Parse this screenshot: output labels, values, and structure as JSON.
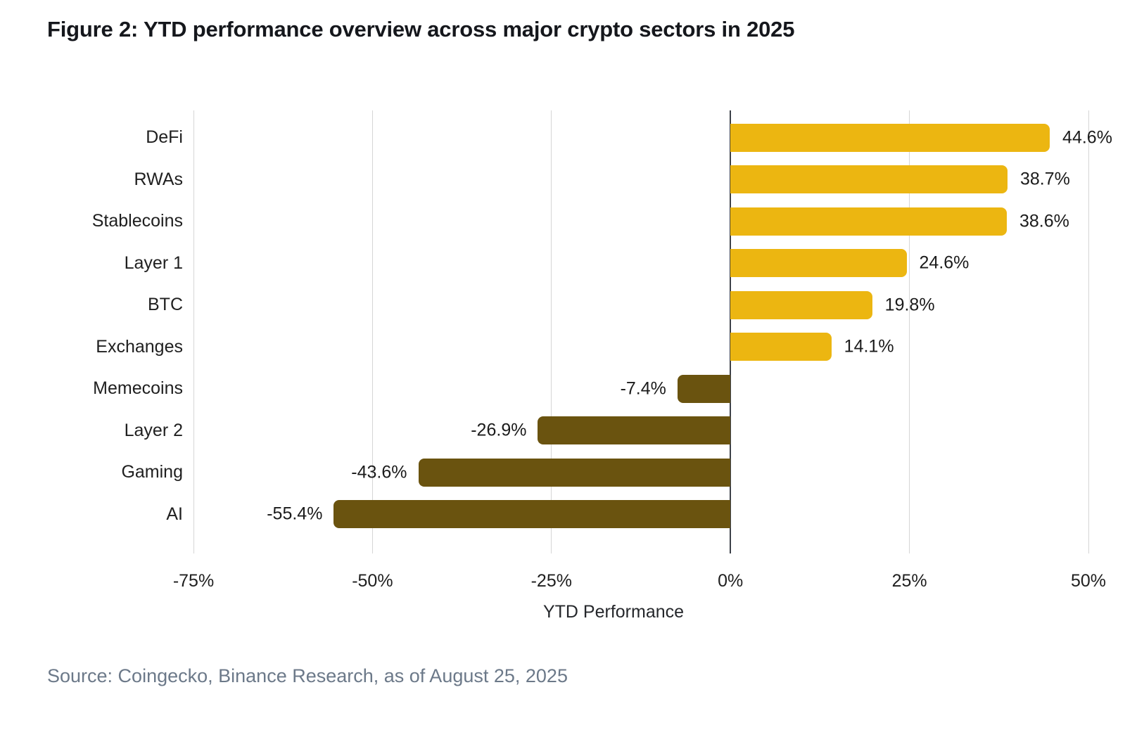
{
  "figure": {
    "title": "Figure 2: YTD performance overview across major crypto sectors in 2025",
    "source": "Source: Coingecko, Binance Research, as of August 25, 2025"
  },
  "chart_data": {
    "type": "bar",
    "orientation": "horizontal",
    "title": "Figure 2: YTD performance overview across major crypto sectors in 2025",
    "xlabel": "YTD Performance",
    "categories": [
      "DeFi",
      "RWAs",
      "Stablecoins",
      "Layer 1",
      "BTC",
      "Exchanges",
      "Memecoins",
      "Layer 2",
      "Gaming",
      "AI"
    ],
    "values": [
      44.6,
      38.7,
      38.6,
      24.6,
      19.8,
      14.1,
      -7.4,
      -26.9,
      -43.6,
      -55.4
    ],
    "value_labels": [
      "44.6%",
      "38.7%",
      "38.6%",
      "24.6%",
      "19.8%",
      "14.1%",
      "-7.4%",
      "-26.9%",
      "-43.6%",
      "-55.4%"
    ],
    "xlim": [
      -75,
      50
    ],
    "x_ticks": [
      -75,
      -50,
      -25,
      0,
      25,
      50
    ],
    "x_tick_labels": [
      "-75%",
      "-50%",
      "-25%",
      "0%",
      "25%",
      "50%"
    ],
    "grid": true,
    "legend": "none",
    "colors": {
      "positive": "#ECB611",
      "negative": "#6A530F",
      "gridline": "#D6D6D6",
      "zero_line": "#3C4048",
      "source_text": "#6C7989"
    }
  }
}
